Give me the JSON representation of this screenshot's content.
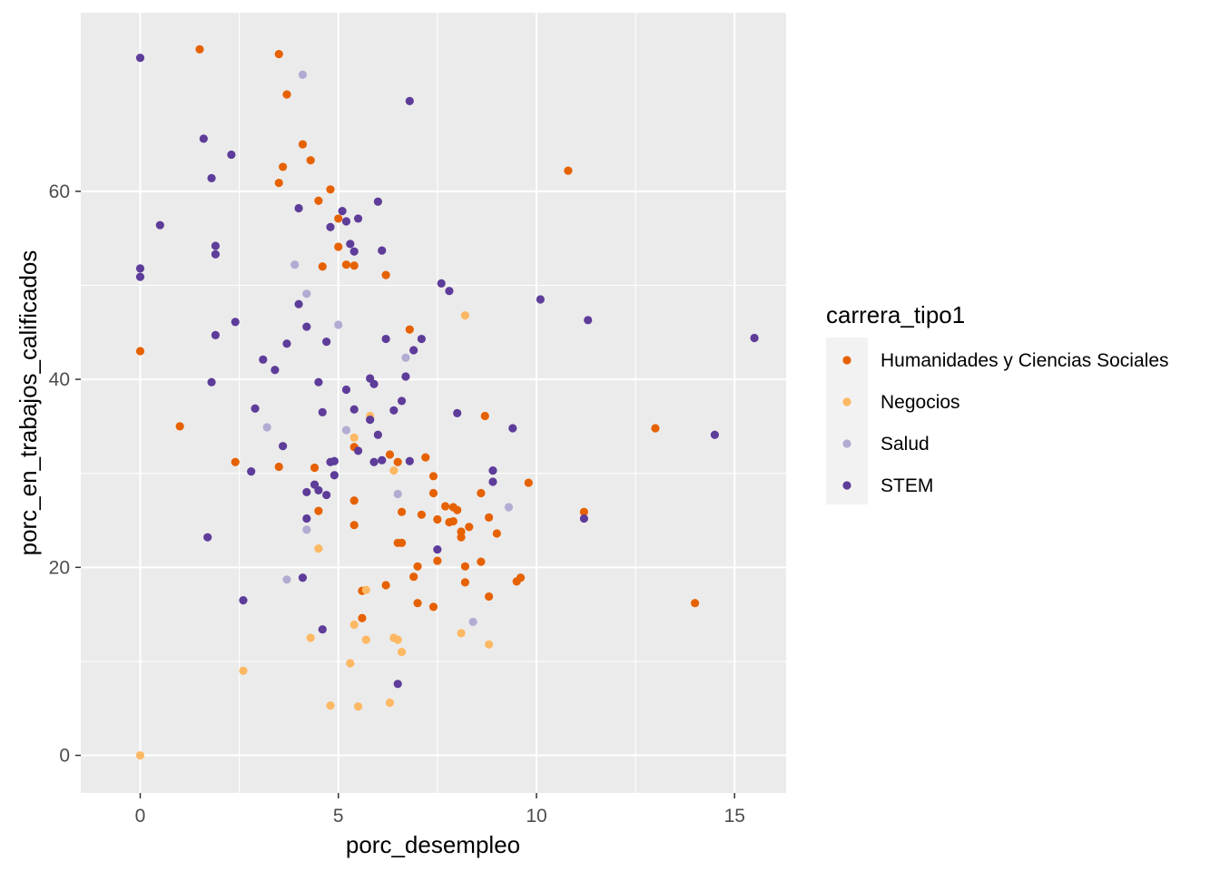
{
  "chart_data": {
    "type": "scatter",
    "xlabel": "porc_desempleo",
    "ylabel": "porc_en_trabajos_calificados",
    "xlim": [
      -1.5,
      16.3
    ],
    "ylim": [
      -4,
      79
    ],
    "x_ticks": [
      0,
      5,
      10,
      15
    ],
    "y_ticks": [
      0,
      20,
      40,
      60
    ],
    "x_tick_labels": [
      "0",
      "5",
      "10",
      "15"
    ],
    "y_tick_labels": [
      "0",
      "20",
      "40",
      "60"
    ],
    "grid": true,
    "legend": {
      "title": "carrera_tipo1",
      "position": "right"
    },
    "series": [
      {
        "name": "Humanidades y Ciencias Sociales",
        "color": "#e66101",
        "points": [
          [
            1.5,
            75.1
          ],
          [
            3.5,
            74.6
          ],
          [
            3.7,
            70.3
          ],
          [
            4.1,
            65.0
          ],
          [
            3.6,
            62.6
          ],
          [
            4.3,
            63.3
          ],
          [
            3.5,
            60.9
          ],
          [
            4.5,
            59.0
          ],
          [
            4.8,
            60.2
          ],
          [
            5.0,
            57.1
          ],
          [
            5.0,
            54.1
          ],
          [
            4.6,
            52.0
          ],
          [
            5.2,
            52.2
          ],
          [
            5.4,
            52.1
          ],
          [
            6.2,
            51.1
          ],
          [
            6.8,
            45.3
          ],
          [
            0.0,
            43.0
          ],
          [
            10.8,
            62.2
          ],
          [
            1.0,
            35.0
          ],
          [
            2.4,
            31.2
          ],
          [
            3.5,
            30.7
          ],
          [
            4.4,
            30.6
          ],
          [
            5.4,
            32.8
          ],
          [
            6.3,
            32.0
          ],
          [
            6.5,
            31.2
          ],
          [
            7.2,
            31.7
          ],
          [
            7.4,
            29.7
          ],
          [
            8.7,
            36.1
          ],
          [
            7.4,
            27.9
          ],
          [
            7.7,
            26.5
          ],
          [
            7.9,
            26.4
          ],
          [
            8.0,
            26.1
          ],
          [
            8.6,
            27.9
          ],
          [
            9.8,
            29.0
          ],
          [
            5.4,
            27.1
          ],
          [
            4.5,
            26.0
          ],
          [
            6.6,
            25.9
          ],
          [
            7.1,
            25.6
          ],
          [
            7.5,
            25.1
          ],
          [
            7.9,
            24.9
          ],
          [
            7.8,
            24.8
          ],
          [
            8.3,
            24.3
          ],
          [
            8.1,
            23.8
          ],
          [
            8.8,
            25.3
          ],
          [
            8.1,
            23.2
          ],
          [
            9.0,
            23.6
          ],
          [
            5.4,
            24.5
          ],
          [
            6.5,
            22.6
          ],
          [
            6.6,
            22.6
          ],
          [
            7.5,
            20.7
          ],
          [
            8.6,
            20.6
          ],
          [
            8.2,
            20.1
          ],
          [
            7.0,
            20.1
          ],
          [
            6.9,
            19.0
          ],
          [
            8.2,
            18.4
          ],
          [
            6.2,
            18.1
          ],
          [
            5.6,
            17.5
          ],
          [
            9.5,
            18.5
          ],
          [
            9.6,
            18.9
          ],
          [
            8.8,
            16.9
          ],
          [
            7.0,
            16.2
          ],
          [
            7.4,
            15.8
          ],
          [
            5.6,
            14.6
          ],
          [
            13.0,
            34.8
          ],
          [
            11.2,
            25.9
          ],
          [
            14.0,
            16.2
          ]
        ]
      },
      {
        "name": "Negocios",
        "color": "#fdb863",
        "points": [
          [
            8.2,
            46.8
          ],
          [
            5.8,
            36.1
          ],
          [
            5.4,
            33.8
          ],
          [
            6.4,
            30.3
          ],
          [
            4.5,
            22.0
          ],
          [
            5.7,
            17.6
          ],
          [
            5.4,
            13.9
          ],
          [
            4.3,
            12.5
          ],
          [
            5.7,
            12.3
          ],
          [
            6.4,
            12.5
          ],
          [
            6.5,
            12.3
          ],
          [
            6.6,
            11.0
          ],
          [
            8.1,
            13.0
          ],
          [
            8.8,
            11.8
          ],
          [
            5.3,
            9.8
          ],
          [
            2.6,
            9.0
          ],
          [
            4.8,
            5.3
          ],
          [
            5.5,
            5.2
          ],
          [
            6.3,
            5.6
          ],
          [
            0.0,
            0.0
          ]
        ]
      },
      {
        "name": "Salud",
        "color": "#b2abd2",
        "points": [
          [
            4.1,
            72.4
          ],
          [
            3.9,
            52.2
          ],
          [
            4.2,
            49.1
          ],
          [
            5.0,
            45.8
          ],
          [
            6.7,
            42.3
          ],
          [
            3.2,
            34.9
          ],
          [
            5.2,
            34.6
          ],
          [
            6.5,
            27.8
          ],
          [
            9.3,
            26.4
          ],
          [
            4.2,
            24.0
          ],
          [
            3.7,
            18.7
          ],
          [
            8.4,
            14.2
          ]
        ]
      },
      {
        "name": "STEM",
        "color": "#5e3c99",
        "points": [
          [
            0.0,
            74.2
          ],
          [
            6.8,
            69.6
          ],
          [
            1.6,
            65.6
          ],
          [
            2.3,
            63.9
          ],
          [
            1.8,
            61.4
          ],
          [
            6.0,
            58.9
          ],
          [
            4.0,
            58.2
          ],
          [
            5.1,
            57.9
          ],
          [
            5.5,
            57.1
          ],
          [
            5.2,
            56.8
          ],
          [
            0.5,
            56.4
          ],
          [
            4.8,
            56.2
          ],
          [
            1.9,
            54.2
          ],
          [
            5.3,
            54.4
          ],
          [
            5.4,
            53.6
          ],
          [
            6.1,
            53.7
          ],
          [
            1.9,
            53.3
          ],
          [
            0.0,
            51.8
          ],
          [
            0.0,
            50.9
          ],
          [
            7.6,
            50.2
          ],
          [
            7.8,
            49.4
          ],
          [
            10.1,
            48.5
          ],
          [
            4.0,
            48.0
          ],
          [
            11.3,
            46.3
          ],
          [
            2.4,
            46.1
          ],
          [
            4.2,
            45.6
          ],
          [
            1.9,
            44.7
          ],
          [
            6.2,
            44.3
          ],
          [
            7.1,
            44.3
          ],
          [
            4.7,
            44.0
          ],
          [
            3.7,
            43.8
          ],
          [
            6.9,
            43.1
          ],
          [
            15.5,
            44.4
          ],
          [
            3.1,
            42.1
          ],
          [
            3.4,
            41.0
          ],
          [
            6.7,
            40.3
          ],
          [
            5.8,
            40.1
          ],
          [
            5.9,
            39.5
          ],
          [
            4.5,
            39.7
          ],
          [
            1.8,
            39.7
          ],
          [
            5.2,
            38.9
          ],
          [
            6.6,
            37.7
          ],
          [
            2.9,
            36.9
          ],
          [
            5.4,
            36.8
          ],
          [
            6.4,
            36.7
          ],
          [
            4.6,
            36.5
          ],
          [
            8.0,
            36.4
          ],
          [
            5.8,
            35.7
          ],
          [
            9.4,
            34.8
          ],
          [
            6.0,
            34.1
          ],
          [
            14.5,
            34.1
          ],
          [
            3.6,
            32.9
          ],
          [
            5.5,
            32.4
          ],
          [
            4.8,
            31.2
          ],
          [
            4.9,
            31.3
          ],
          [
            6.1,
            31.4
          ],
          [
            6.8,
            31.3
          ],
          [
            5.9,
            31.2
          ],
          [
            2.8,
            30.2
          ],
          [
            4.9,
            29.8
          ],
          [
            8.9,
            30.3
          ],
          [
            8.9,
            29.1
          ],
          [
            4.4,
            28.8
          ],
          [
            4.5,
            28.2
          ],
          [
            4.2,
            28.0
          ],
          [
            4.7,
            27.7
          ],
          [
            4.2,
            25.2
          ],
          [
            11.2,
            25.2
          ],
          [
            7.5,
            21.9
          ],
          [
            1.7,
            23.2
          ],
          [
            4.1,
            18.9
          ],
          [
            2.6,
            16.5
          ],
          [
            4.6,
            13.4
          ],
          [
            6.5,
            7.6
          ]
        ]
      }
    ]
  }
}
